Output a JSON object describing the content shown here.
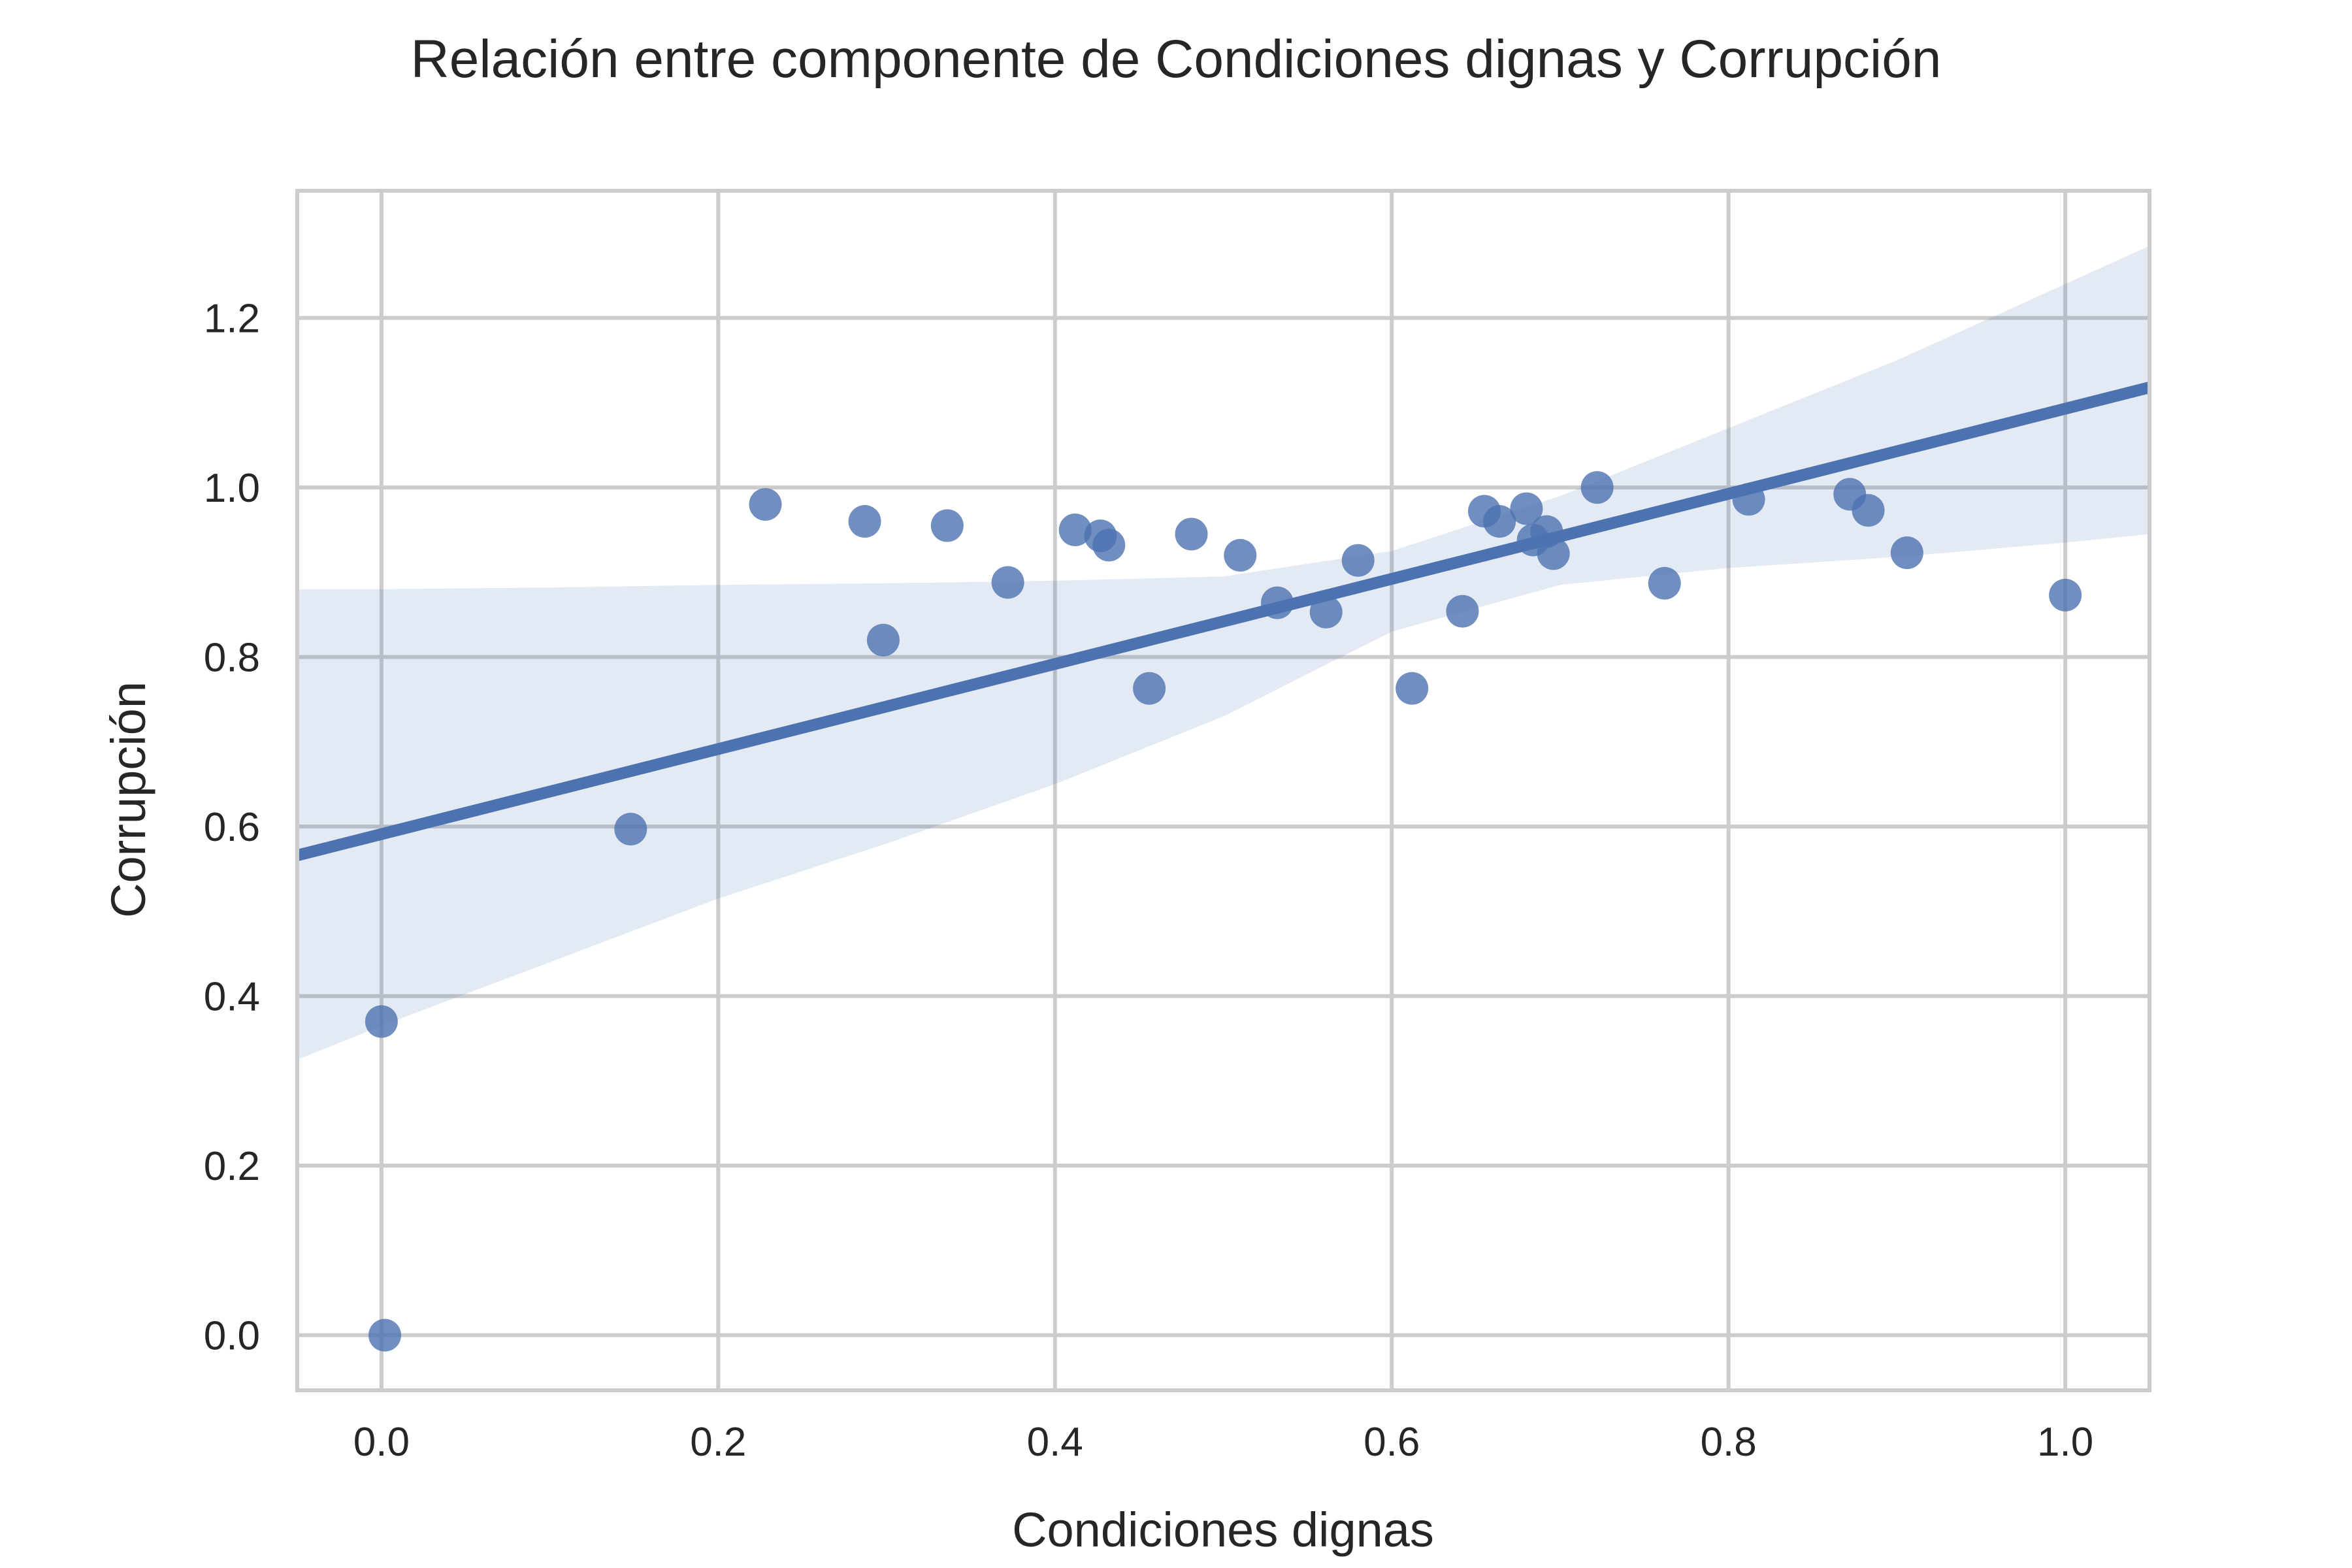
{
  "chart_data": {
    "type": "scatter",
    "title": "Relación entre componente de Condiciones dignas y Corrupción",
    "xlabel": "Condiciones dignas",
    "ylabel": "Corrupción",
    "xlim": [
      -0.05,
      1.05
    ],
    "ylim": [
      -0.065,
      1.35
    ],
    "xticks": [
      "0.0",
      "0.2",
      "0.4",
      "0.6",
      "0.8",
      "1.0"
    ],
    "yticks": [
      "0.0",
      "0.2",
      "0.4",
      "0.6",
      "0.8",
      "1.0",
      "1.2"
    ],
    "grid": true,
    "points": [
      {
        "x": 0.0,
        "y": 0.37
      },
      {
        "x": 0.002,
        "y": 0.0
      },
      {
        "x": 0.148,
        "y": 0.597
      },
      {
        "x": 0.228,
        "y": 0.98
      },
      {
        "x": 0.287,
        "y": 0.96
      },
      {
        "x": 0.298,
        "y": 0.82
      },
      {
        "x": 0.336,
        "y": 0.955
      },
      {
        "x": 0.372,
        "y": 0.888
      },
      {
        "x": 0.412,
        "y": 0.95
      },
      {
        "x": 0.427,
        "y": 0.943
      },
      {
        "x": 0.432,
        "y": 0.932
      },
      {
        "x": 0.456,
        "y": 0.763
      },
      {
        "x": 0.481,
        "y": 0.945
      },
      {
        "x": 0.51,
        "y": 0.92
      },
      {
        "x": 0.532,
        "y": 0.864
      },
      {
        "x": 0.561,
        "y": 0.853
      },
      {
        "x": 0.58,
        "y": 0.914
      },
      {
        "x": 0.612,
        "y": 0.763
      },
      {
        "x": 0.642,
        "y": 0.854
      },
      {
        "x": 0.655,
        "y": 0.972
      },
      {
        "x": 0.664,
        "y": 0.96
      },
      {
        "x": 0.68,
        "y": 0.975
      },
      {
        "x": 0.684,
        "y": 0.938
      },
      {
        "x": 0.692,
        "y": 0.948
      },
      {
        "x": 0.696,
        "y": 0.922
      },
      {
        "x": 0.722,
        "y": 1.0
      },
      {
        "x": 0.762,
        "y": 0.887
      },
      {
        "x": 0.812,
        "y": 0.986
      },
      {
        "x": 0.872,
        "y": 0.992
      },
      {
        "x": 0.883,
        "y": 0.973
      },
      {
        "x": 0.906,
        "y": 0.923
      },
      {
        "x": 1.0,
        "y": 0.873
      }
    ],
    "regression": {
      "x": [
        -0.05,
        1.05
      ],
      "y": [
        0.566,
        1.118
      ]
    },
    "confidence_band": {
      "x": [
        -0.05,
        0.0,
        0.1,
        0.2,
        0.3,
        0.4,
        0.5,
        0.6,
        0.7,
        0.8,
        0.9,
        1.0,
        1.05
      ],
      "lower": [
        0.325,
        0.365,
        0.44,
        0.515,
        0.58,
        0.65,
        0.73,
        0.83,
        0.885,
        0.905,
        0.918,
        0.935,
        0.945
      ],
      "upper": [
        0.88,
        0.88,
        0.882,
        0.885,
        0.887,
        0.89,
        0.895,
        0.925,
        0.99,
        1.07,
        1.15,
        1.24,
        1.285
      ]
    },
    "colors": {
      "points": "#4c72b0",
      "line": "#4c72b0",
      "band": "#4c72b0",
      "grid": "#cccccc",
      "text": "#262626"
    }
  }
}
